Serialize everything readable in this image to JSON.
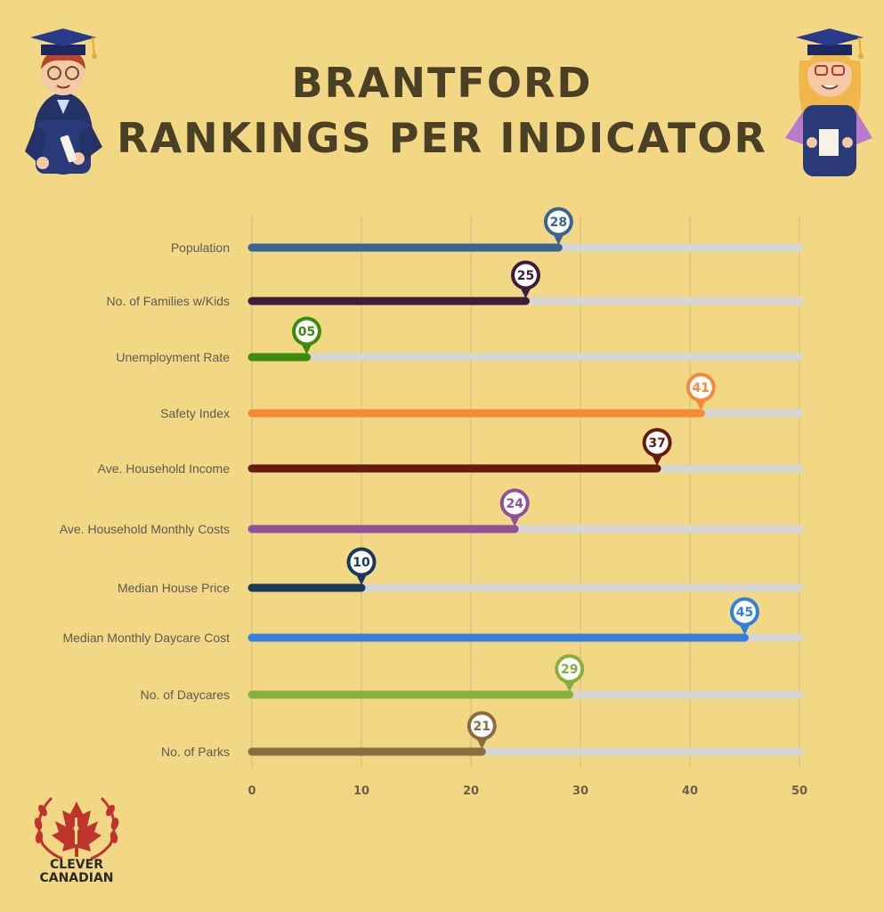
{
  "header": {
    "title_line1": "BRANTFORD",
    "title_line2": "RANKINGS PER INDICATOR"
  },
  "brand": {
    "line1": "CLEVER",
    "line2": "CANADIAN"
  },
  "chart_data": {
    "type": "bar",
    "orientation": "horizontal",
    "title": "BRANTFORD RANKINGS PER INDICATOR",
    "xlim": [
      0,
      50
    ],
    "xticks": [
      0,
      10,
      20,
      30,
      40,
      50
    ],
    "grid": true,
    "categories": [
      "Population",
      "No. of Families w/Kids",
      "Unemployment Rate",
      "Safety Index",
      "Ave. Household Income",
      "Ave. Household Monthly Costs",
      "Median House Price",
      "Median Monthly Daycare Cost",
      "No. of Daycares",
      "No. of Parks"
    ],
    "values": [
      28,
      25,
      5,
      41,
      37,
      24,
      10,
      45,
      29,
      21
    ],
    "value_labels": [
      "28",
      "25",
      "05",
      "41",
      "37",
      "24",
      "10",
      "45",
      "29",
      "21"
    ],
    "colors": [
      "#3A6590",
      "#3D1D3A",
      "#3E8A0C",
      "#F78A3A",
      "#671B0C",
      "#8F5197",
      "#163A57",
      "#3380DB",
      "#86AF3C",
      "#8A6C3E"
    ]
  },
  "colors": {
    "background": "#F2D785",
    "track": "#D6D6D2",
    "title": "#4A4026",
    "grid": "#D8C07A"
  }
}
